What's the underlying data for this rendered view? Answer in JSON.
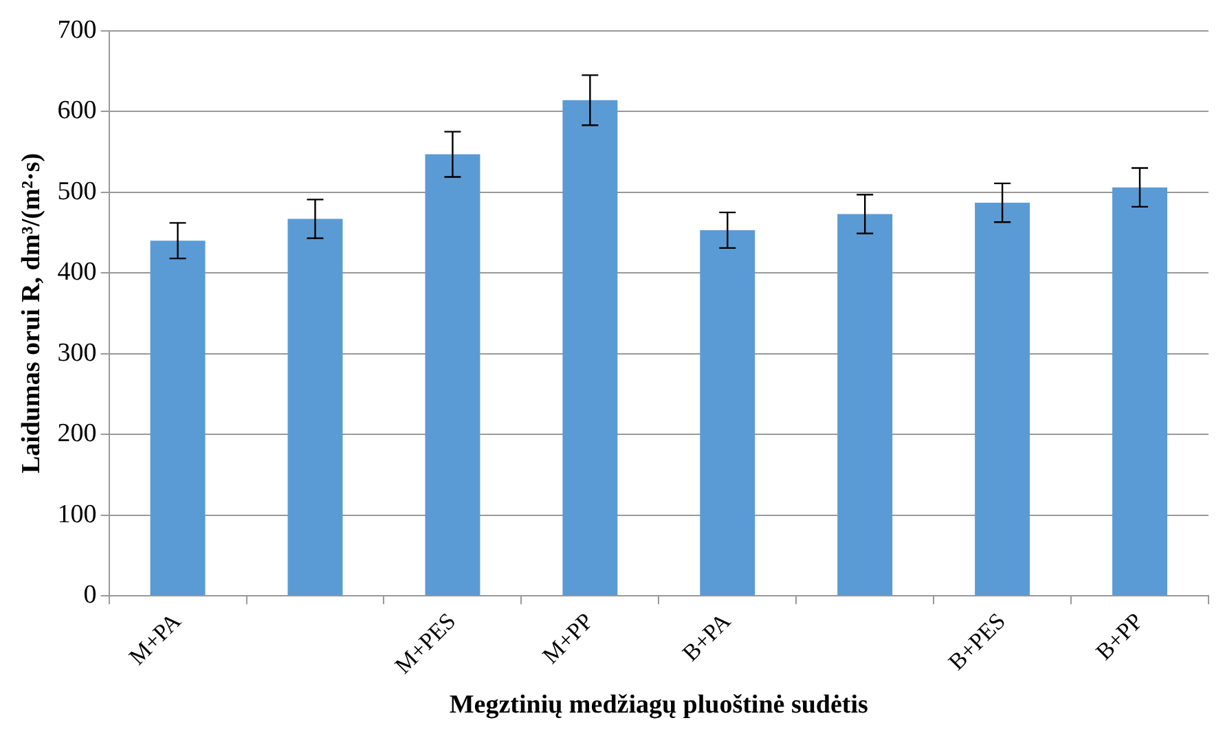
{
  "chart_data": {
    "type": "bar",
    "xlabel": "Megztinių medžiagų pluoštinė sudėtis",
    "ylabel": "Laidumas orui R, dm³/(m²·s)",
    "categories": [
      "M+PA",
      null,
      "M+PES",
      "M+PP",
      "B+PA",
      null,
      "B+PES",
      "B+PP"
    ],
    "values": [
      440,
      467,
      547,
      614,
      453,
      473,
      487,
      506
    ],
    "errors": [
      22,
      24,
      28,
      31,
      22,
      24,
      24,
      24
    ],
    "color": "#5b9bd5",
    "ylim": [
      0,
      700
    ],
    "yticks": [
      0,
      100,
      200,
      300,
      400,
      500,
      600,
      700
    ],
    "grid": "y",
    "legend": false
  }
}
